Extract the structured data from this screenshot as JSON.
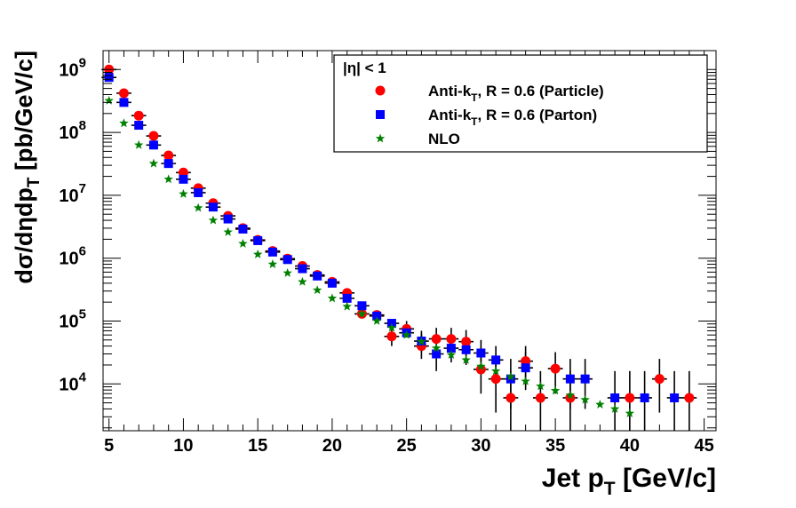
{
  "chart_data": {
    "type": "scatter",
    "y_scale": "log",
    "xlim": [
      4.6,
      45.8
    ],
    "ylim": [
      1800,
      2000000000
    ],
    "x_ticks": [
      5,
      10,
      15,
      20,
      25,
      30,
      35,
      40,
      45
    ],
    "y_ticks": [
      10000,
      100000,
      1000000,
      10000000,
      100000000,
      1000000000
    ],
    "x_tick_labels": [
      "5",
      "10",
      "15",
      "20",
      "25",
      "30",
      "35",
      "40",
      "45"
    ],
    "y_tick_labels": [
      {
        "base": "10",
        "exp": "4"
      },
      {
        "base": "10",
        "exp": "5"
      },
      {
        "base": "10",
        "exp": "6"
      },
      {
        "base": "10",
        "exp": "7"
      },
      {
        "base": "10",
        "exp": "8"
      },
      {
        "base": "10",
        "exp": "9"
      }
    ],
    "xlabel": {
      "main": "Jet p",
      "sub": "T",
      "tail": " [GeV/c]"
    },
    "ylabel": {
      "main": "dσ/dηdp",
      "sub": "T",
      "tail": " [pb/GeV/c]"
    },
    "legend": {
      "placement": "top-right",
      "header": "|η| < 1"
    },
    "series": [
      {
        "name": "Anti-k_T, R = 0.6 (Particle)",
        "legend_label": {
          "main": "Anti-k",
          "sub": "T",
          "tail": ", R = 0.6 (Particle)"
        },
        "marker": "circle",
        "color": "#ff0000",
        "x_err": 0.5,
        "points": [
          {
            "x": 5,
            "y": 1000000000
          },
          {
            "x": 6,
            "y": 420000000
          },
          {
            "x": 7,
            "y": 185000000
          },
          {
            "x": 8,
            "y": 88000000
          },
          {
            "x": 9,
            "y": 43000000
          },
          {
            "x": 10,
            "y": 23000000
          },
          {
            "x": 11,
            "y": 13000000
          },
          {
            "x": 12,
            "y": 7500000
          },
          {
            "x": 13,
            "y": 4700000
          },
          {
            "x": 14,
            "y": 3000000
          },
          {
            "x": 15,
            "y": 1950000
          },
          {
            "x": 16,
            "y": 1300000
          },
          {
            "x": 17,
            "y": 980000
          },
          {
            "x": 18,
            "y": 750000
          },
          {
            "x": 19,
            "y": 540000
          },
          {
            "x": 20,
            "y": 420000
          },
          {
            "x": 21,
            "y": 280000
          },
          {
            "x": 22,
            "y": 130000
          },
          {
            "x": 23,
            "y": 125000
          },
          {
            "x": 24,
            "y": 57000,
            "lo": 40000,
            "hi": 78000
          },
          {
            "x": 25,
            "y": 75000,
            "lo": 55000,
            "hi": 100000
          },
          {
            "x": 26,
            "y": 40000,
            "lo": 25000,
            "hi": 62000
          },
          {
            "x": 27,
            "y": 52000,
            "lo": 32000,
            "hi": 78000
          },
          {
            "x": 28,
            "y": 52000,
            "lo": 32000,
            "hi": 78000
          },
          {
            "x": 29,
            "y": 47000,
            "lo": 28000,
            "hi": 72000
          },
          {
            "x": 30,
            "y": 17000,
            "lo": 7000,
            "hi": 30000
          },
          {
            "x": 31,
            "y": 12000,
            "lo": 3500,
            "hi": 25000
          },
          {
            "x": 32,
            "y": 6000,
            "lo": 1800,
            "hi": 16000
          },
          {
            "x": 33,
            "y": 23000,
            "lo": 10000,
            "hi": 40000
          },
          {
            "x": 34,
            "y": 6000,
            "lo": 1800,
            "hi": 16000
          },
          {
            "x": 35,
            "y": 17500,
            "lo": 7000,
            "hi": 32000
          },
          {
            "x": 36,
            "y": 6000,
            "lo": 1800,
            "hi": 16000
          },
          {
            "x": 40,
            "y": 6000,
            "lo": 1800,
            "hi": 16000
          },
          {
            "x": 42,
            "y": 12000,
            "lo": 3500,
            "hi": 25000
          },
          {
            "x": 44,
            "y": 6000,
            "lo": 1800,
            "hi": 16000
          }
        ]
      },
      {
        "name": "Anti-k_T, R = 0.6 (Parton)",
        "legend_label": {
          "main": "Anti-k",
          "sub": "T",
          "tail": ", R = 0.6 (Parton)"
        },
        "marker": "square",
        "color": "#0000ff",
        "x_err": 0.5,
        "points": [
          {
            "x": 5,
            "y": 750000000
          },
          {
            "x": 6,
            "y": 300000000
          },
          {
            "x": 7,
            "y": 130000000
          },
          {
            "x": 8,
            "y": 63000000
          },
          {
            "x": 9,
            "y": 32000000
          },
          {
            "x": 10,
            "y": 18000000
          },
          {
            "x": 11,
            "y": 11000000
          },
          {
            "x": 12,
            "y": 6500000
          },
          {
            "x": 13,
            "y": 4200000
          },
          {
            "x": 14,
            "y": 2900000
          },
          {
            "x": 15,
            "y": 1900000
          },
          {
            "x": 16,
            "y": 1250000
          },
          {
            "x": 17,
            "y": 950000
          },
          {
            "x": 18,
            "y": 680000
          },
          {
            "x": 19,
            "y": 520000
          },
          {
            "x": 20,
            "y": 400000
          },
          {
            "x": 21,
            "y": 230000
          },
          {
            "x": 22,
            "y": 175000
          },
          {
            "x": 23,
            "y": 120000
          },
          {
            "x": 24,
            "y": 92000
          },
          {
            "x": 25,
            "y": 65000
          },
          {
            "x": 26,
            "y": 48000,
            "lo": 32000,
            "hi": 70000
          },
          {
            "x": 27,
            "y": 30000,
            "lo": 16000,
            "hi": 48000
          },
          {
            "x": 28,
            "y": 37000,
            "lo": 22000,
            "hi": 58000
          },
          {
            "x": 29,
            "y": 35000,
            "lo": 20000,
            "hi": 55000
          },
          {
            "x": 30,
            "y": 31000,
            "lo": 18000,
            "hi": 50000
          },
          {
            "x": 31,
            "y": 24000,
            "lo": 12000,
            "hi": 40000
          },
          {
            "x": 32,
            "y": 12000,
            "lo": 4000,
            "hi": 25000
          },
          {
            "x": 33,
            "y": 18000,
            "lo": 8000,
            "hi": 32000
          },
          {
            "x": 36,
            "y": 12000,
            "lo": 4000,
            "hi": 25000
          },
          {
            "x": 37,
            "y": 12000,
            "lo": 4000,
            "hi": 25000
          },
          {
            "x": 39,
            "y": 6000,
            "lo": 1800,
            "hi": 16000
          },
          {
            "x": 41,
            "y": 6000,
            "lo": 1800,
            "hi": 16000
          },
          {
            "x": 43,
            "y": 6000,
            "lo": 1800,
            "hi": 16000
          }
        ]
      },
      {
        "name": "NLO",
        "legend_label": {
          "main": "NLO",
          "sub": "",
          "tail": ""
        },
        "marker": "star",
        "color": "#008000",
        "x_err": 0,
        "points": [
          {
            "x": 5,
            "y": 320000000
          },
          {
            "x": 6,
            "y": 140000000
          },
          {
            "x": 7,
            "y": 63000000
          },
          {
            "x": 8,
            "y": 32000000
          },
          {
            "x": 9,
            "y": 18000000
          },
          {
            "x": 10,
            "y": 10500000
          },
          {
            "x": 11,
            "y": 6300000
          },
          {
            "x": 12,
            "y": 4000000
          },
          {
            "x": 13,
            "y": 2600000
          },
          {
            "x": 14,
            "y": 1700000
          },
          {
            "x": 15,
            "y": 1150000
          },
          {
            "x": 16,
            "y": 800000
          },
          {
            "x": 17,
            "y": 580000
          },
          {
            "x": 18,
            "y": 420000
          },
          {
            "x": 19,
            "y": 310000
          },
          {
            "x": 20,
            "y": 230000
          },
          {
            "x": 21,
            "y": 170000
          },
          {
            "x": 22,
            "y": 130000
          },
          {
            "x": 23,
            "y": 100000
          },
          {
            "x": 24,
            "y": 78000
          },
          {
            "x": 25,
            "y": 60000
          },
          {
            "x": 26,
            "y": 47000
          },
          {
            "x": 27,
            "y": 37000
          },
          {
            "x": 28,
            "y": 29000
          },
          {
            "x": 29,
            "y": 24000
          },
          {
            "x": 30,
            "y": 19000
          },
          {
            "x": 31,
            "y": 16000
          },
          {
            "x": 32,
            "y": 13000
          },
          {
            "x": 33,
            "y": 11000
          },
          {
            "x": 34,
            "y": 9200
          },
          {
            "x": 35,
            "y": 7800
          },
          {
            "x": 36,
            "y": 6600
          },
          {
            "x": 37,
            "y": 5600
          },
          {
            "x": 38,
            "y": 4700
          },
          {
            "x": 39,
            "y": 4000
          },
          {
            "x": 40,
            "y": 3400
          }
        ]
      }
    ]
  }
}
